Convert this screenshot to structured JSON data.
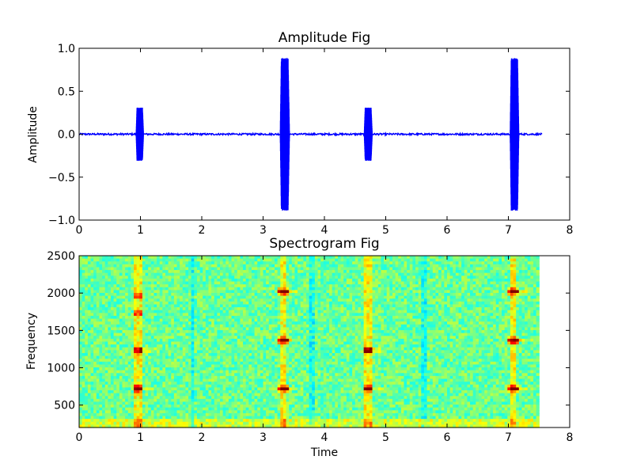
{
  "chart_data": [
    {
      "type": "line",
      "title": "Amplitude Fig",
      "xlabel": "",
      "ylabel": "Amplitude",
      "xlim": [
        0,
        8
      ],
      "ylim": [
        -1.0,
        1.0
      ],
      "xticks": [
        "0",
        "1",
        "2",
        "3",
        "4",
        "5",
        "6",
        "7",
        "8"
      ],
      "yticks": [
        "−1.0",
        "−0.5",
        "0.0",
        "0.5",
        "1.0"
      ],
      "ytick_values": [
        -1.0,
        -0.5,
        0.0,
        0.5,
        1.0
      ],
      "grid": false,
      "line_color": "#0000ff",
      "signal_end": 7.55,
      "bursts": [
        {
          "start": 0.93,
          "end": 1.05,
          "peak": 0.31
        },
        {
          "start": 3.28,
          "end": 3.43,
          "peak": 0.89
        },
        {
          "start": 4.65,
          "end": 4.78,
          "peak": 0.31
        },
        {
          "start": 7.03,
          "end": 7.17,
          "peak": 0.89
        }
      ]
    },
    {
      "type": "heatmap",
      "title": "Spectrogram Fig",
      "xlabel": "Time",
      "ylabel": "Frequency",
      "xlim": [
        0,
        8
      ],
      "ylim": [
        200,
        2500
      ],
      "xticks": [
        "0",
        "1",
        "2",
        "3",
        "4",
        "5",
        "6",
        "7",
        "8"
      ],
      "yticks": [
        "500",
        "1000",
        "1500",
        "2000",
        "2500"
      ],
      "ytick_values": [
        500,
        1000,
        1500,
        2000,
        2500
      ],
      "colormap": "jet",
      "data_end": 7.5,
      "events": [
        {
          "time": 0.97,
          "bands": [
            720,
            1230
          ],
          "faint_bands": [
            1750,
            1950
          ]
        },
        {
          "time": 3.33,
          "bands": [
            720,
            1360,
            2020
          ],
          "faint_bands": []
        },
        {
          "time": 4.72,
          "bands": [
            720,
            1230
          ],
          "faint_bands": []
        },
        {
          "time": 7.08,
          "bands": [
            720,
            1360,
            2020
          ],
          "faint_bands": []
        }
      ],
      "vertical_lines": [
        1.85,
        3.8,
        5.62
      ]
    }
  ]
}
